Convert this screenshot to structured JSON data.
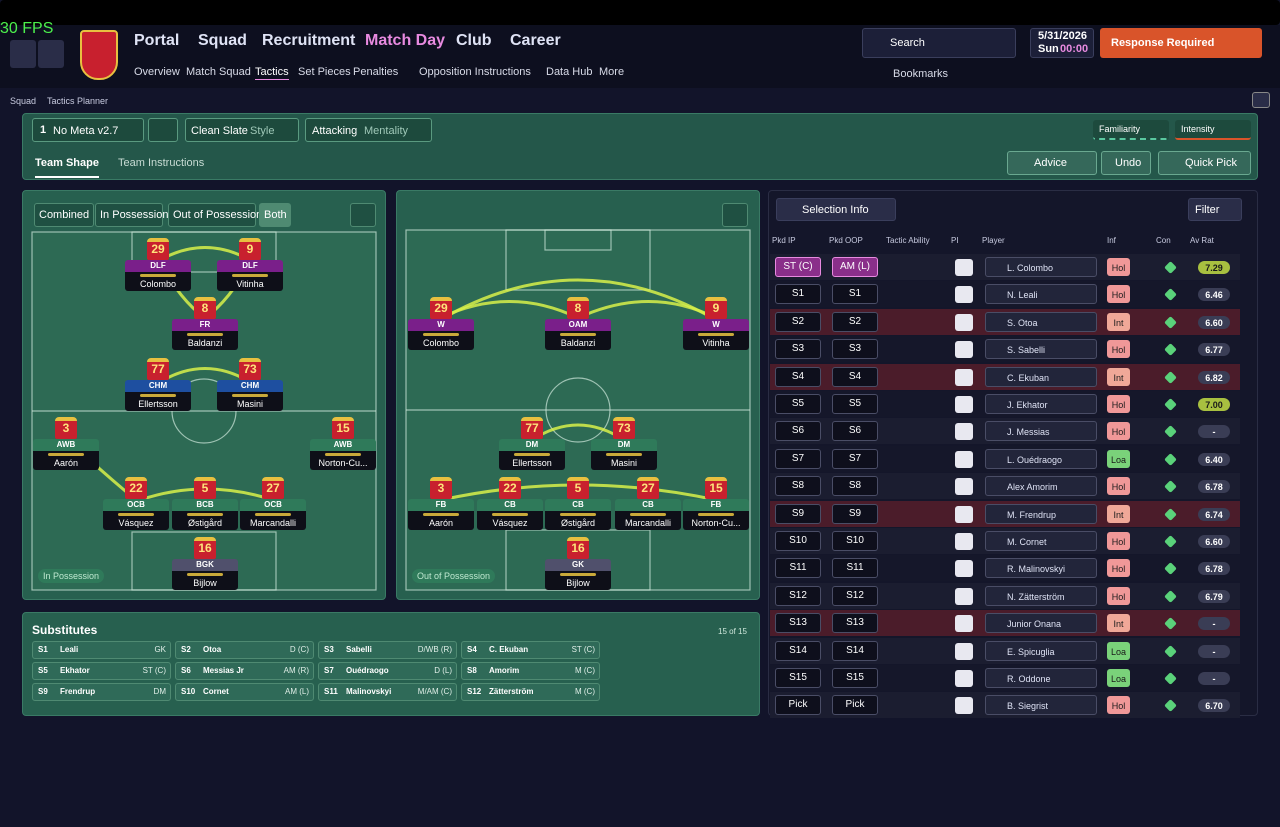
{
  "header": {
    "fps": "30 FPS",
    "nav": [
      "Portal",
      "Squad",
      "Recruitment",
      "Match Day",
      "Club",
      "Career"
    ],
    "subnav": [
      "Overview",
      "Match Squad",
      "Tactics",
      "Set Pieces",
      "Penalties",
      "Opposition Instructions",
      "Data Hub",
      "More"
    ],
    "search": "Search",
    "date": "5/31/2026",
    "day": "Sun",
    "time": "00:00",
    "alert": "Response Required",
    "bookmarks": "Bookmarks"
  },
  "breadcrumb": [
    "Squad",
    "Tactics Planner"
  ],
  "toolbar": {
    "tactic_number": "1",
    "tactic": "No Meta v2.7",
    "style_value": "Clean Slate",
    "style_label": "Style",
    "mentality_value": "Attacking",
    "mentality_label": "Mentality",
    "familiarity": "Familiarity",
    "intensity": "Intensity",
    "tabs": [
      "Team Shape",
      "Team Instructions"
    ],
    "advice": "Advice",
    "undo": "Undo",
    "quick_pick": "Quick Pick"
  },
  "phase_tabs": [
    "Combined",
    "In Possession",
    "Out of Possession",
    "Both"
  ],
  "pitches": [
    {
      "label": "In Possession",
      "players": [
        {
          "number": "29",
          "role": "DLF",
          "name": "Colombo"
        },
        {
          "number": "9",
          "role": "DLF",
          "name": "Vitinha"
        },
        {
          "number": "8",
          "role": "FR",
          "name": "Baldanzi"
        },
        {
          "number": "77",
          "role": "CHM",
          "name": "Ellertsson"
        },
        {
          "number": "73",
          "role": "CHM",
          "name": "Masini"
        },
        {
          "number": "3",
          "role": "AWB",
          "name": "Aarón"
        },
        {
          "number": "15",
          "role": "AWB",
          "name": "Norton-Cu..."
        },
        {
          "number": "22",
          "role": "OCB",
          "name": "Vásquez"
        },
        {
          "number": "5",
          "role": "BCB",
          "name": "Østigård"
        },
        {
          "number": "27",
          "role": "OCB",
          "name": "Marcandalli"
        },
        {
          "number": "16",
          "role": "BGK",
          "name": "Bijlow"
        }
      ]
    },
    {
      "label": "Out of Possession",
      "players": [
        {
          "number": "29",
          "role": "W",
          "name": "Colombo"
        },
        {
          "number": "8",
          "role": "OAM",
          "name": "Baldanzi"
        },
        {
          "number": "9",
          "role": "W",
          "name": "Vitinha"
        },
        {
          "number": "77",
          "role": "DM",
          "name": "Ellertsson"
        },
        {
          "number": "73",
          "role": "DM",
          "name": "Masini"
        },
        {
          "number": "3",
          "role": "FB",
          "name": "Aarón"
        },
        {
          "number": "22",
          "role": "CB",
          "name": "Vásquez"
        },
        {
          "number": "5",
          "role": "CB",
          "name": "Østigård"
        },
        {
          "number": "27",
          "role": "CB",
          "name": "Marcandalli"
        },
        {
          "number": "15",
          "role": "FB",
          "name": "Norton-Cu..."
        },
        {
          "number": "16",
          "role": "GK",
          "name": "Bijlow"
        }
      ]
    }
  ],
  "selection": {
    "button": "Selection Info",
    "filter": "Filter",
    "headers": [
      "Pkd IP",
      "Pkd OOP",
      "Tactic Ability",
      "PI",
      "Player",
      "Inf",
      "Con",
      "Av Rat"
    ],
    "rows": [
      {
        "ip": "ST (C)",
        "oop": "AM (L)",
        "player": "L. Colombo",
        "inf": "Hol",
        "rating": "7.29"
      },
      {
        "ip": "S1",
        "oop": "S1",
        "player": "N. Leali",
        "inf": "Hol",
        "rating": "6.46"
      },
      {
        "ip": "S2",
        "oop": "S2",
        "player": "S. Otoa",
        "inf": "Int",
        "rating": "6.60"
      },
      {
        "ip": "S3",
        "oop": "S3",
        "player": "S. Sabelli",
        "inf": "Hol",
        "rating": "6.77"
      },
      {
        "ip": "S4",
        "oop": "S4",
        "player": "C. Ekuban",
        "inf": "Int",
        "rating": "6.82"
      },
      {
        "ip": "S5",
        "oop": "S5",
        "player": "J. Ekhator",
        "inf": "Hol",
        "rating": "7.00"
      },
      {
        "ip": "S6",
        "oop": "S6",
        "player": "J. Messias",
        "inf": "Hol",
        "rating": "-"
      },
      {
        "ip": "S7",
        "oop": "S7",
        "player": "L. Ouédraogo",
        "inf": "Loa",
        "rating": "6.40"
      },
      {
        "ip": "S8",
        "oop": "S8",
        "player": "Alex Amorim",
        "inf": "Hol",
        "rating": "6.78"
      },
      {
        "ip": "S9",
        "oop": "S9",
        "player": "M. Frendrup",
        "inf": "Int",
        "rating": "6.74"
      },
      {
        "ip": "S10",
        "oop": "S10",
        "player": "M. Cornet",
        "inf": "Hol",
        "rating": "6.60"
      },
      {
        "ip": "S11",
        "oop": "S11",
        "player": "R. Malinovskyi",
        "inf": "Hol",
        "rating": "6.78"
      },
      {
        "ip": "S12",
        "oop": "S12",
        "player": "N. Zätterström",
        "inf": "Hol",
        "rating": "6.79"
      },
      {
        "ip": "S13",
        "oop": "S13",
        "player": "Junior Onana",
        "inf": "Int",
        "rating": "-"
      },
      {
        "ip": "S14",
        "oop": "S14",
        "player": "E. Spicuglia",
        "inf": "Loa",
        "rating": "-"
      },
      {
        "ip": "S15",
        "oop": "S15",
        "player": "R. Oddone",
        "inf": "Loa",
        "rating": "-"
      },
      {
        "ip": "Pick",
        "oop": "Pick",
        "player": "B. Siegrist",
        "inf": "Hol",
        "rating": "6.70"
      }
    ]
  },
  "substitutes": {
    "title": "Substitutes",
    "count": "15 of 15",
    "list": [
      {
        "slot": "S1",
        "name": "Leali",
        "pos": "GK"
      },
      {
        "slot": "S2",
        "name": "Otoa",
        "pos": "D (C)"
      },
      {
        "slot": "S3",
        "name": "Sabelli",
        "pos": "D/WB (R)"
      },
      {
        "slot": "S4",
        "name": "C. Ekuban",
        "pos": "ST (C)"
      },
      {
        "slot": "S5",
        "name": "Ekhator",
        "pos": "ST (C)"
      },
      {
        "slot": "S6",
        "name": "Messias Jr",
        "pos": "AM (R)"
      },
      {
        "slot": "S7",
        "name": "Ouédraogo",
        "pos": "D (L)"
      },
      {
        "slot": "S8",
        "name": "Amorim",
        "pos": "M (C)"
      },
      {
        "slot": "S9",
        "name": "Frendrup",
        "pos": "DM"
      },
      {
        "slot": "S10",
        "name": "Cornet",
        "pos": "AM (L)"
      },
      {
        "slot": "S11",
        "name": "Malinovskyi",
        "pos": "M/AM (C)"
      },
      {
        "slot": "S12",
        "name": "Zätterström",
        "pos": "M (C)"
      }
    ]
  }
}
